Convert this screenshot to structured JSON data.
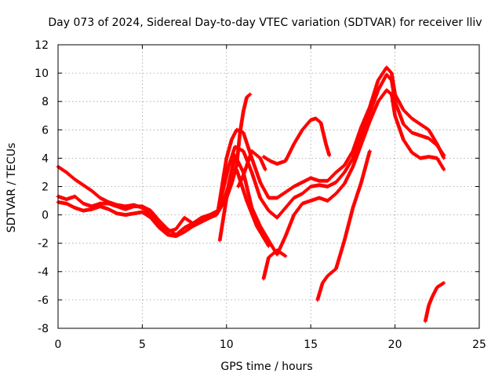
{
  "chart_data": {
    "type": "scatter",
    "title": "Day 073 of 2024, Sidereal Day-to-day VTEC variation (SDTVAR) for receiver lliv",
    "xlabel": "GPS time / hours",
    "ylabel": "SDTVAR / TECUs",
    "xlim": [
      0,
      25
    ],
    "ylim": [
      -8,
      12
    ],
    "x_ticks": [
      "0",
      "5",
      "10",
      "15",
      "20",
      "25"
    ],
    "y_ticks": [
      "-8",
      "-6",
      "-4",
      "-2",
      "0",
      "2",
      "4",
      "6",
      "8",
      "10",
      "12"
    ],
    "grid": true,
    "marker": "plus",
    "color": "#ff0000",
    "series": [
      {
        "segments": [
          [
            [
              0.0,
              3.4
            ],
            [
              0.5,
              3.0
            ],
            [
              1.0,
              2.5
            ],
            [
              1.5,
              2.1
            ],
            [
              2.0,
              1.7
            ],
            [
              2.5,
              1.2
            ],
            [
              3.0,
              0.9
            ],
            [
              3.5,
              0.7
            ],
            [
              4.0,
              0.6
            ],
            [
              4.5,
              0.7
            ],
            [
              5.0,
              0.5
            ],
            [
              5.5,
              0.0
            ],
            [
              6.0,
              -0.7
            ],
            [
              6.5,
              -1.2
            ],
            [
              7.0,
              -1.0
            ],
            [
              7.5,
              -0.2
            ],
            [
              8.0,
              -0.6
            ],
            [
              8.5,
              -0.2
            ],
            [
              9.0,
              0.0
            ],
            [
              9.5,
              0.3
            ],
            [
              10.0,
              4.0
            ],
            [
              10.3,
              5.3
            ],
            [
              10.6,
              6.0
            ],
            [
              11.0,
              5.8
            ],
            [
              11.5,
              4.0
            ],
            [
              12.0,
              2.3
            ],
            [
              12.5,
              1.2
            ],
            [
              13.0,
              1.2
            ],
            [
              13.5,
              1.6
            ],
            [
              14.0,
              2.0
            ],
            [
              14.5,
              2.3
            ],
            [
              15.0,
              2.6
            ],
            [
              15.5,
              2.4
            ],
            [
              16.0,
              2.4
            ],
            [
              16.5,
              3.0
            ],
            [
              17.0,
              3.5
            ],
            [
              17.5,
              4.5
            ],
            [
              18.0,
              6.2
            ],
            [
              18.5,
              7.6
            ],
            [
              19.0,
              9.5
            ],
            [
              19.5,
              10.4
            ],
            [
              19.8,
              10.0
            ],
            [
              20.0,
              8.5
            ],
            [
              20.5,
              7.4
            ],
            [
              21.0,
              6.8
            ],
            [
              21.5,
              6.4
            ],
            [
              22.0,
              6.0
            ],
            [
              22.5,
              5.0
            ],
            [
              22.9,
              4.0
            ]
          ],
          [
            [
              12.2,
              4.1
            ],
            [
              12.6,
              3.8
            ],
            [
              13.0,
              3.6
            ],
            [
              13.5,
              3.8
            ],
            [
              14.0,
              5.0
            ],
            [
              14.5,
              6.0
            ],
            [
              15.0,
              6.7
            ],
            [
              15.3,
              6.8
            ],
            [
              15.6,
              6.5
            ],
            [
              15.9,
              5.0
            ],
            [
              16.1,
              4.2
            ]
          ]
        ]
      },
      {
        "segments": [
          [
            [
              0.0,
              1.3
            ],
            [
              0.5,
              1.1
            ],
            [
              1.0,
              1.3
            ],
            [
              1.5,
              0.8
            ],
            [
              2.0,
              0.6
            ],
            [
              2.5,
              0.8
            ],
            [
              3.0,
              0.8
            ],
            [
              3.5,
              0.6
            ],
            [
              4.0,
              0.4
            ],
            [
              4.5,
              0.6
            ],
            [
              5.0,
              0.6
            ],
            [
              5.5,
              0.3
            ],
            [
              6.0,
              -0.4
            ],
            [
              6.5,
              -1.0
            ],
            [
              7.0,
              -1.4
            ],
            [
              7.5,
              -0.9
            ],
            [
              8.0,
              -0.6
            ],
            [
              8.5,
              -0.4
            ],
            [
              9.0,
              -0.1
            ],
            [
              9.5,
              0.2
            ],
            [
              9.8,
              1.8
            ],
            [
              10.1,
              3.3
            ],
            [
              10.5,
              4.8
            ],
            [
              11.0,
              4.5
            ],
            [
              11.5,
              3.0
            ],
            [
              12.0,
              1.2
            ],
            [
              12.5,
              0.3
            ],
            [
              13.0,
              -0.2
            ],
            [
              13.5,
              0.5
            ],
            [
              14.0,
              1.2
            ],
            [
              14.5,
              1.5
            ],
            [
              15.0,
              2.0
            ],
            [
              15.5,
              2.1
            ],
            [
              16.0,
              2.0
            ],
            [
              16.5,
              2.3
            ],
            [
              17.0,
              3.0
            ],
            [
              17.5,
              4.0
            ],
            [
              18.0,
              5.6
            ],
            [
              18.5,
              7.2
            ],
            [
              19.0,
              8.8
            ],
            [
              19.5,
              9.9
            ],
            [
              19.8,
              9.5
            ],
            [
              20.0,
              8.0
            ],
            [
              20.5,
              6.4
            ],
            [
              21.0,
              5.8
            ],
            [
              21.5,
              5.6
            ],
            [
              22.0,
              5.4
            ],
            [
              22.5,
              4.9
            ],
            [
              22.9,
              4.2
            ]
          ]
        ]
      },
      {
        "segments": [
          [
            [
              0.0,
              0.9
            ],
            [
              0.5,
              0.8
            ],
            [
              1.0,
              0.5
            ],
            [
              1.5,
              0.3
            ],
            [
              2.0,
              0.4
            ],
            [
              2.5,
              0.6
            ],
            [
              3.0,
              0.4
            ],
            [
              3.5,
              0.1
            ],
            [
              4.0,
              0.0
            ],
            [
              4.5,
              0.1
            ],
            [
              5.0,
              0.2
            ],
            [
              5.5,
              -0.2
            ],
            [
              6.0,
              -0.9
            ],
            [
              6.5,
              -1.4
            ],
            [
              7.0,
              -1.5
            ],
            [
              7.5,
              -1.2
            ],
            [
              8.0,
              -0.8
            ],
            [
              8.5,
              -0.5
            ],
            [
              9.0,
              -0.2
            ],
            [
              9.4,
              0.0
            ],
            [
              9.8,
              0.8
            ],
            [
              10.1,
              2.0
            ],
            [
              10.5,
              4.2
            ],
            [
              11.0,
              3.0
            ],
            [
              11.5,
              0.5
            ],
            [
              12.0,
              -0.8
            ],
            [
              12.5,
              -1.8
            ],
            [
              13.0,
              -2.8
            ],
            [
              13.5,
              -1.5
            ],
            [
              14.0,
              0.0
            ],
            [
              14.5,
              0.8
            ],
            [
              15.0,
              1.0
            ],
            [
              15.5,
              1.2
            ],
            [
              16.0,
              1.0
            ],
            [
              16.5,
              1.5
            ],
            [
              17.0,
              2.2
            ],
            [
              17.5,
              3.4
            ],
            [
              18.0,
              5.0
            ],
            [
              18.5,
              6.6
            ],
            [
              19.0,
              8.0
            ],
            [
              19.5,
              8.8
            ],
            [
              19.8,
              8.5
            ],
            [
              20.0,
              7.0
            ],
            [
              20.5,
              5.3
            ],
            [
              21.0,
              4.4
            ],
            [
              21.5,
              4.0
            ],
            [
              22.0,
              4.1
            ],
            [
              22.5,
              4.0
            ],
            [
              22.9,
              3.2
            ]
          ]
        ]
      },
      {
        "segments": [
          [
            [
              9.6,
              -1.8
            ],
            [
              9.8,
              -0.3
            ],
            [
              10.0,
              1.2
            ],
            [
              10.3,
              2.2
            ],
            [
              10.6,
              3.5
            ],
            [
              10.8,
              5.8
            ],
            [
              11.0,
              7.3
            ],
            [
              11.2,
              8.3
            ],
            [
              11.4,
              8.5
            ]
          ],
          [
            [
              10.7,
              2.0
            ],
            [
              11.0,
              2.8
            ],
            [
              11.5,
              4.5
            ],
            [
              12.0,
              4.0
            ],
            [
              12.3,
              3.2
            ]
          ],
          [
            [
              12.2,
              -4.5
            ],
            [
              12.5,
              -3.0
            ],
            [
              13.0,
              -2.5
            ],
            [
              13.5,
              -2.9
            ]
          ],
          [
            [
              10.6,
              3.2
            ],
            [
              11.2,
              1.0
            ],
            [
              11.8,
              -0.8
            ],
            [
              12.5,
              -2.2
            ]
          ],
          [
            [
              15.4,
              -6.0
            ],
            [
              15.7,
              -4.8
            ],
            [
              16.0,
              -4.3
            ],
            [
              16.5,
              -3.8
            ],
            [
              17.0,
              -1.8
            ],
            [
              17.5,
              0.5
            ],
            [
              18.0,
              2.3
            ],
            [
              18.5,
              4.5
            ]
          ],
          [
            [
              21.8,
              -7.5
            ],
            [
              22.0,
              -6.4
            ],
            [
              22.2,
              -5.8
            ],
            [
              22.5,
              -5.1
            ],
            [
              22.9,
              -4.8
            ]
          ]
        ]
      }
    ]
  }
}
